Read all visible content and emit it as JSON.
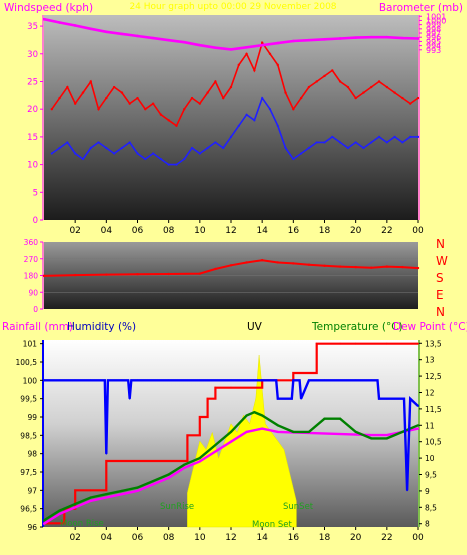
{
  "header": {
    "top_left": "Windspeed (kph)",
    "top_center": "24 Hour graph upto 00:00 29 November 2008",
    "top_right": "Barometer (mb)"
  },
  "bottom_header": {
    "rainfall": "Rainfall (mm)",
    "humidity": "Humidity (%)",
    "uv": "UV",
    "temperature": "Temperature (°C)",
    "dewpoint": "Dew Point (°C)"
  },
  "x_ticks": [
    "02",
    "04",
    "06",
    "08",
    "10",
    "12",
    "14",
    "16",
    "18",
    "20",
    "22",
    "00"
  ],
  "compass": [
    "N",
    "W",
    "S",
    "E",
    "N"
  ],
  "annotations": {
    "moon_rise": "Moon Rise",
    "sun_rise": "SunRise",
    "sun_set": "SunSet",
    "moon_set": "Moon Set"
  },
  "colors": {
    "wind_gust": "#ff0000",
    "wind_avg": "#2020ff",
    "barometer": "#ff00ff",
    "direction": "#ff0000",
    "rainfall": "#ff0000",
    "humidity": "#0000ff",
    "uv": "#ffff00",
    "temperature": "#008000",
    "dewpoint": "#ff00ff"
  },
  "chart_data": [
    {
      "type": "line",
      "name": "wind-barometer",
      "x_range": [
        0,
        24
      ],
      "ylim_left": [
        0,
        37
      ],
      "yticks_left": [
        0,
        5,
        10,
        15,
        20,
        25,
        30,
        35
      ],
      "ylim_right": [
        952.4,
        1001.3
      ],
      "yticks_right": [
        993,
        994,
        995,
        996,
        997,
        998,
        999,
        1000,
        1001
      ],
      "series": [
        {
          "role": "wind-gust",
          "axis": "left",
          "x": [
            0.5,
            1,
            1.5,
            2,
            2.5,
            3,
            3.5,
            4,
            4.5,
            5,
            5.5,
            6,
            6.5,
            7,
            7.5,
            8,
            8.5,
            9,
            9.5,
            10,
            10.5,
            11,
            11.5,
            12,
            12.5,
            13,
            13.5,
            14,
            14.5,
            15,
            15.5,
            16,
            16.5,
            17,
            17.5,
            18,
            18.5,
            19,
            19.5,
            20,
            20.5,
            21,
            21.5,
            22,
            22.5,
            23,
            23.5,
            24
          ],
          "y": [
            20,
            22,
            24,
            21,
            23,
            25,
            20,
            22,
            24,
            23,
            21,
            22,
            20,
            21,
            19,
            18,
            17,
            20,
            22,
            21,
            23,
            25,
            22,
            24,
            28,
            30,
            27,
            32,
            30,
            28,
            23,
            20,
            22,
            24,
            25,
            26,
            27,
            25,
            24,
            22,
            23,
            24,
            25,
            24,
            23,
            22,
            21,
            22
          ]
        },
        {
          "role": "wind-average",
          "axis": "left",
          "x": [
            0.5,
            1,
            1.5,
            2,
            2.5,
            3,
            3.5,
            4,
            4.5,
            5,
            5.5,
            6,
            6.5,
            7,
            7.5,
            8,
            8.5,
            9,
            9.5,
            10,
            10.5,
            11,
            11.5,
            12,
            12.5,
            13,
            13.5,
            14,
            14.5,
            15,
            15.5,
            16,
            16.5,
            17,
            17.5,
            18,
            18.5,
            19,
            19.5,
            20,
            20.5,
            21,
            21.5,
            22,
            22.5,
            23,
            23.5,
            24
          ],
          "y": [
            12,
            13,
            14,
            12,
            11,
            13,
            14,
            13,
            12,
            13,
            14,
            12,
            11,
            12,
            11,
            10,
            10,
            11,
            13,
            12,
            13,
            14,
            13,
            15,
            17,
            19,
            18,
            22,
            20,
            17,
            13,
            11,
            12,
            13,
            14,
            14,
            15,
            14,
            13,
            14,
            13,
            14,
            15,
            14,
            15,
            14,
            15,
            15
          ]
        },
        {
          "role": "barometer",
          "axis": "right",
          "x": [
            0,
            1,
            2,
            3,
            4,
            5,
            6,
            7,
            8,
            9,
            10,
            11,
            12,
            13,
            14,
            15,
            16,
            17,
            18,
            19,
            20,
            21,
            22,
            23,
            24
          ],
          "y": [
            1000.3,
            999.5,
            998.8,
            998.0,
            997.3,
            996.8,
            996.3,
            995.8,
            995.3,
            994.8,
            994.1,
            993.5,
            993.1,
            993.6,
            994.1,
            994.6,
            995.1,
            995.3,
            995.5,
            995.7,
            995.9,
            996.0,
            996.0,
            995.8,
            995.7
          ]
        }
      ]
    },
    {
      "type": "line",
      "name": "wind-direction",
      "x_range": [
        0,
        24
      ],
      "ylim": [
        0,
        360
      ],
      "yticks": [
        0,
        90,
        180,
        270,
        360
      ],
      "series": [
        {
          "role": "direction",
          "x": [
            0,
            2,
            4,
            6,
            8,
            10,
            11,
            12,
            13,
            14,
            15,
            16,
            17,
            18,
            19,
            20,
            21,
            22,
            23,
            24
          ],
          "y": [
            178,
            182,
            185,
            187,
            188,
            190,
            215,
            235,
            250,
            262,
            250,
            245,
            238,
            232,
            228,
            225,
            222,
            228,
            225,
            220
          ]
        }
      ]
    },
    {
      "type": "line",
      "name": "rain-humidity-uv-temperature",
      "x_range": [
        0,
        24
      ],
      "ylim_left": [
        96.0,
        101.1
      ],
      "yticks_left": [
        96,
        96.5,
        97,
        97.5,
        98,
        98.5,
        99,
        99.5,
        100,
        100.5,
        101
      ],
      "ylim_right": [
        7.9,
        13.6
      ],
      "yticks_right": [
        8,
        8.5,
        9,
        9.5,
        10,
        10.5,
        11,
        11.5,
        12,
        12.5,
        13,
        13.5
      ],
      "series": [
        {
          "role": "rainfall",
          "axis": "left",
          "step": true,
          "x": [
            0,
            0.8,
            1.3,
            2,
            3,
            4,
            5,
            6,
            7,
            8,
            9,
            9.2,
            10,
            10.5,
            11,
            12,
            14,
            16,
            17.5,
            19,
            20,
            22,
            24
          ],
          "y": [
            96.1,
            96.1,
            96.5,
            97,
            97,
            97.8,
            97.8,
            97.8,
            97.8,
            97.8,
            97.8,
            98.5,
            99,
            99.5,
            99.8,
            99.8,
            100.0,
            100.2,
            101.0,
            101.0,
            101.0,
            101.0,
            101.0
          ]
        },
        {
          "role": "humidity",
          "axis": "left",
          "x": [
            0,
            1,
            2,
            3,
            3.9,
            4,
            4.1,
            5,
            5.4,
            5.5,
            5.6,
            6,
            8,
            10,
            12,
            14,
            14.9,
            15,
            15.5,
            15.9,
            16,
            16.4,
            16.5,
            17,
            17.5,
            18,
            20,
            21,
            21.4,
            21.5,
            21.6,
            22,
            23.1,
            23.3,
            23.5,
            24
          ],
          "y": [
            100,
            100,
            100,
            100,
            100,
            98,
            100,
            100,
            100,
            99.5,
            100,
            100,
            100,
            100,
            100,
            100,
            100,
            99.5,
            99.5,
            99.5,
            100,
            100,
            99.5,
            100,
            100,
            100,
            100,
            100,
            100,
            99.5,
            99.5,
            99.5,
            99.5,
            97,
            99.5,
            99.3
          ]
        },
        {
          "role": "temperature",
          "axis": "right",
          "x": [
            0,
            1,
            2,
            3,
            4,
            5,
            6,
            7,
            8,
            9,
            10,
            11,
            12,
            13,
            13.5,
            14,
            15,
            16,
            17,
            18,
            19,
            20,
            21,
            22,
            23,
            24
          ],
          "y": [
            8.1,
            8.4,
            8.6,
            8.8,
            8.9,
            9.0,
            9.1,
            9.3,
            9.5,
            9.8,
            10.0,
            10.4,
            10.8,
            11.3,
            11.4,
            11.3,
            11.0,
            10.8,
            10.8,
            11.2,
            11.2,
            10.8,
            10.6,
            10.6,
            10.8,
            11.0
          ]
        },
        {
          "role": "dewpoint",
          "axis": "right",
          "x": [
            0,
            1,
            2,
            3,
            4,
            5,
            6,
            7,
            8,
            9,
            10,
            11,
            12,
            13,
            14,
            15,
            21,
            22,
            23,
            24
          ],
          "y": [
            8.0,
            8.3,
            8.5,
            8.7,
            8.8,
            8.9,
            9.0,
            9.2,
            9.4,
            9.7,
            9.9,
            10.2,
            10.5,
            10.8,
            10.9,
            10.8,
            10.7,
            10.7,
            10.8,
            10.9
          ]
        },
        {
          "role": "uv",
          "axis": "left-area",
          "x": [
            9.2,
            9.6,
            10,
            10.4,
            10.8,
            11.2,
            11.6,
            12,
            12.4,
            12.8,
            13.2,
            13.6,
            13.8,
            14,
            14.2,
            14.6,
            15,
            15.4,
            15.8,
            16.2
          ],
          "y": [
            0.2,
            0.35,
            0.5,
            0.45,
            0.55,
            0.4,
            0.5,
            0.6,
            0.55,
            0.65,
            0.6,
            0.75,
            1.0,
            0.8,
            0.6,
            0.55,
            0.5,
            0.45,
            0.3,
            0.15
          ]
        }
      ]
    }
  ]
}
